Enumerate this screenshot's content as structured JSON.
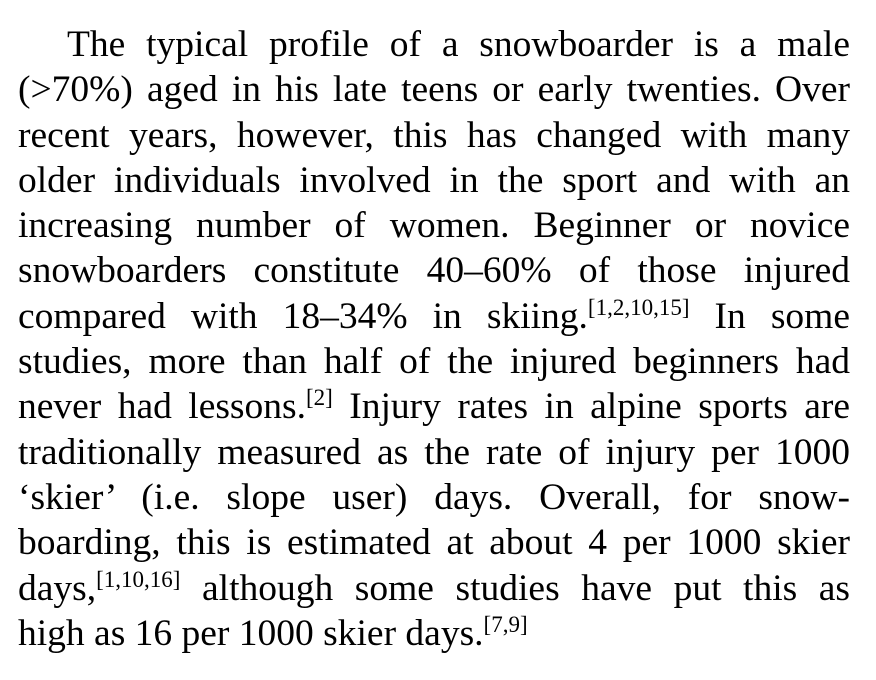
{
  "paragraph": {
    "lines": [
      "The typical profile of a snowboarder is a male",
      "(>70%) aged in his late teens or early twenties. Over",
      "recent years, however, this has changed with many",
      "older individuals involved in the sport and with an",
      "increasing number of women. Beginner or novice",
      "snowboarders constitute 40–60% of those injured",
      "compared with 18–34% in skiing.",
      "In some",
      "studies, more than half of the injured beginners had",
      "never had lessons.",
      "Injury rates in alpine sports are",
      "traditionally measured as the rate of injury per 1000",
      "‘skier’ (i.e. slope user) days. Overall, for snow-",
      "boarding, this is estimated at about 4 per 1000 skier",
      "days,",
      "although some studies have put this as",
      "high as 16 per 1000 skier days."
    ],
    "refs": [
      "[1,2,10,15]",
      "[2]",
      "[1,10,16]",
      "[7,9]"
    ]
  }
}
